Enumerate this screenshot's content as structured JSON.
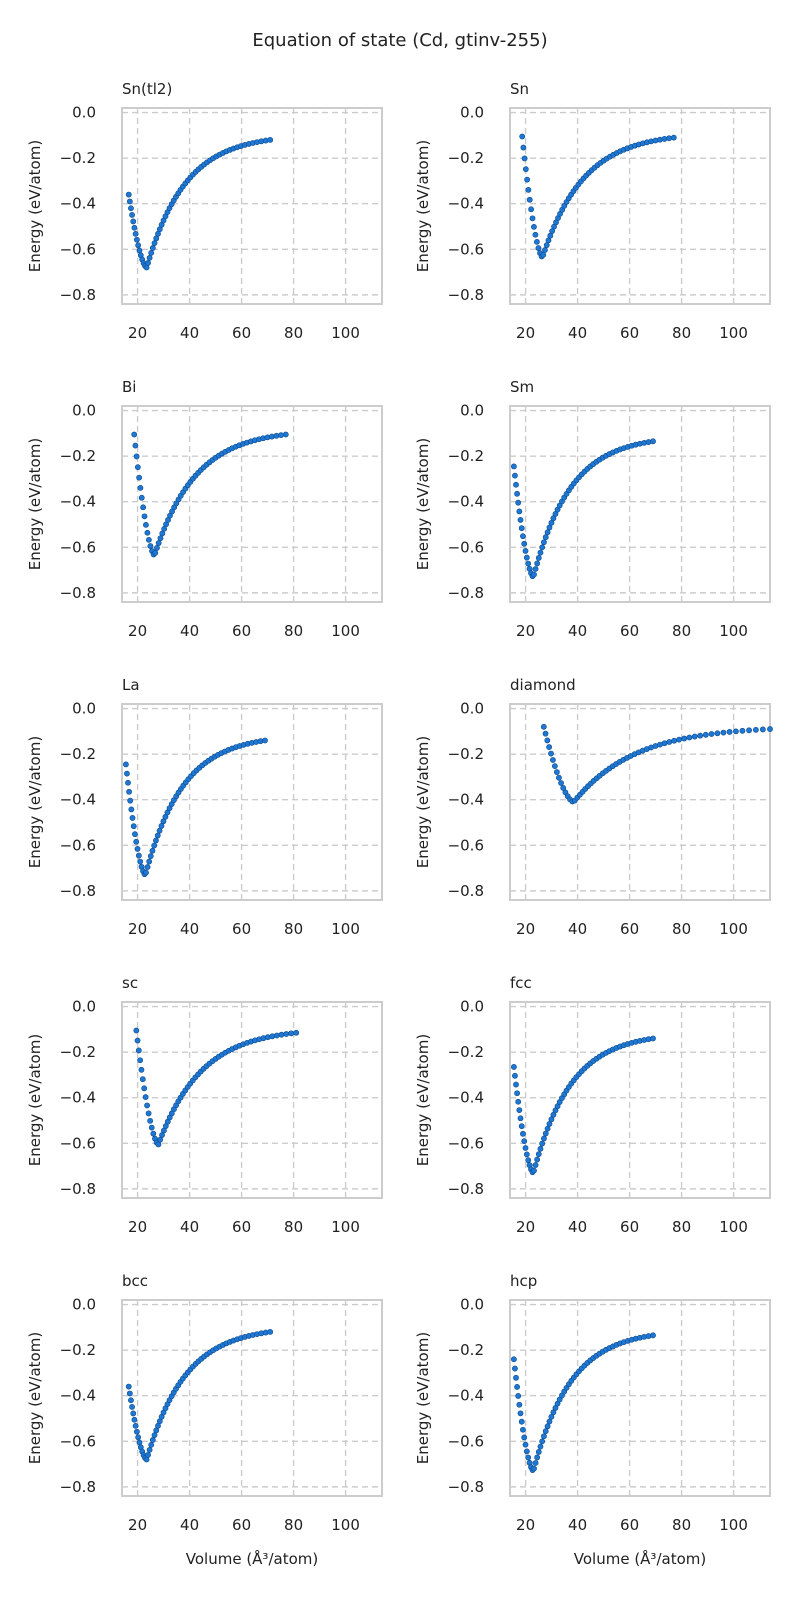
{
  "figure": {
    "title": "Equation of state (Cd, gtinv-255)"
  },
  "chart_data": [
    {
      "type": "scatter",
      "title": "Sn(tl2)",
      "xlabel": "",
      "ylabel": "Energy (eV/atom)",
      "xlim": [
        14,
        114
      ],
      "ylim": [
        -0.84,
        0.02
      ],
      "xticks": [
        20,
        40,
        60,
        80,
        100
      ],
      "yticks": [
        0.0,
        -0.2,
        -0.4,
        -0.6,
        -0.8
      ],
      "grid": true,
      "curve": {
        "v0": 23.5,
        "e0": -0.68,
        "vmin": 16.6,
        "vmax": 71,
        "emin": -0.36,
        "emax": -0.12,
        "points": 60
      }
    },
    {
      "type": "scatter",
      "title": "Sn",
      "xlabel": "",
      "ylabel": "Energy (eV/atom)",
      "xlim": [
        14,
        114
      ],
      "ylim": [
        -0.84,
        0.02
      ],
      "xticks": [
        20,
        40,
        60,
        80,
        100
      ],
      "yticks": [
        0.0,
        -0.2,
        -0.4,
        -0.6,
        -0.8
      ],
      "grid": true,
      "curve": {
        "v0": 26.5,
        "e0": -0.635,
        "vmin": 18.7,
        "vmax": 77,
        "emin": -0.105,
        "emax": -0.11,
        "points": 60
      }
    },
    {
      "type": "scatter",
      "title": "Bi",
      "xlabel": "",
      "ylabel": "Energy (eV/atom)",
      "xlim": [
        14,
        114
      ],
      "ylim": [
        -0.84,
        0.02
      ],
      "xticks": [
        20,
        40,
        60,
        80,
        100
      ],
      "yticks": [
        0.0,
        -0.2,
        -0.4,
        -0.6,
        -0.8
      ],
      "grid": true,
      "curve": {
        "v0": 26.5,
        "e0": -0.635,
        "vmin": 18.7,
        "vmax": 77,
        "emin": -0.105,
        "emax": -0.105,
        "points": 60
      }
    },
    {
      "type": "scatter",
      "title": "Sm",
      "xlabel": "",
      "ylabel": "Energy (eV/atom)",
      "xlim": [
        14,
        114
      ],
      "ylim": [
        -0.84,
        0.02
      ],
      "xticks": [
        20,
        40,
        60,
        80,
        100
      ],
      "yticks": [
        0.0,
        -0.2,
        -0.4,
        -0.6,
        -0.8
      ],
      "grid": true,
      "curve": {
        "v0": 23,
        "e0": -0.73,
        "vmin": 15.5,
        "vmax": 69,
        "emin": -0.245,
        "emax": -0.135,
        "points": 60
      }
    },
    {
      "type": "scatter",
      "title": "La",
      "xlabel": "",
      "ylabel": "Energy (eV/atom)",
      "xlim": [
        14,
        114
      ],
      "ylim": [
        -0.84,
        0.02
      ],
      "xticks": [
        20,
        40,
        60,
        80,
        100
      ],
      "yticks": [
        0.0,
        -0.2,
        -0.4,
        -0.6,
        -0.8
      ],
      "grid": true,
      "curve": {
        "v0": 23,
        "e0": -0.73,
        "vmin": 15.5,
        "vmax": 69,
        "emin": -0.245,
        "emax": -0.14,
        "points": 60
      }
    },
    {
      "type": "scatter",
      "title": "diamond",
      "xlabel": "",
      "ylabel": "Energy (eV/atom)",
      "xlim": [
        14,
        114
      ],
      "ylim": [
        -0.84,
        0.02
      ],
      "xticks": [
        20,
        40,
        60,
        80,
        100
      ],
      "yticks": [
        0.0,
        -0.2,
        -0.4,
        -0.6,
        -0.8
      ],
      "grid": true,
      "curve": {
        "v0": 38.5,
        "e0": -0.41,
        "vmin": 27,
        "vmax": 114,
        "emin": -0.08,
        "emax": -0.09,
        "points": 60
      }
    },
    {
      "type": "scatter",
      "title": "sc",
      "xlabel": "",
      "ylabel": "Energy (eV/atom)",
      "xlim": [
        14,
        114
      ],
      "ylim": [
        -0.84,
        0.02
      ],
      "xticks": [
        20,
        40,
        60,
        80,
        100
      ],
      "yticks": [
        0.0,
        -0.2,
        -0.4,
        -0.6,
        -0.8
      ],
      "grid": true,
      "curve": {
        "v0": 28,
        "e0": -0.605,
        "vmin": 19.5,
        "vmax": 81,
        "emin": -0.105,
        "emax": -0.115,
        "points": 60
      }
    },
    {
      "type": "scatter",
      "title": "fcc",
      "xlabel": "",
      "ylabel": "Energy (eV/atom)",
      "xlim": [
        14,
        114
      ],
      "ylim": [
        -0.84,
        0.02
      ],
      "xticks": [
        20,
        40,
        60,
        80,
        100
      ],
      "yticks": [
        0.0,
        -0.2,
        -0.4,
        -0.6,
        -0.8
      ],
      "grid": true,
      "curve": {
        "v0": 23,
        "e0": -0.73,
        "vmin": 15.5,
        "vmax": 69,
        "emin": -0.265,
        "emax": -0.14,
        "points": 60
      }
    },
    {
      "type": "scatter",
      "title": "bcc",
      "xlabel": "Volume (Å³/atom)",
      "ylabel": "Energy (eV/atom)",
      "xlim": [
        14,
        114
      ],
      "ylim": [
        -0.84,
        0.02
      ],
      "xticks": [
        20,
        40,
        60,
        80,
        100
      ],
      "yticks": [
        0.0,
        -0.2,
        -0.4,
        -0.6,
        -0.8
      ],
      "grid": true,
      "curve": {
        "v0": 23.5,
        "e0": -0.68,
        "vmin": 16.6,
        "vmax": 71,
        "emin": -0.36,
        "emax": -0.12,
        "points": 60
      }
    },
    {
      "type": "scatter",
      "title": "hcp",
      "xlabel": "Volume (Å³/atom)",
      "ylabel": "Energy (eV/atom)",
      "xlim": [
        14,
        114
      ],
      "ylim": [
        -0.84,
        0.02
      ],
      "xticks": [
        20,
        40,
        60,
        80,
        100
      ],
      "yticks": [
        0.0,
        -0.2,
        -0.4,
        -0.6,
        -0.8
      ],
      "grid": true,
      "curve": {
        "v0": 23,
        "e0": -0.73,
        "vmin": 15.5,
        "vmax": 69,
        "emin": -0.24,
        "emax": -0.135,
        "points": 60
      }
    }
  ]
}
